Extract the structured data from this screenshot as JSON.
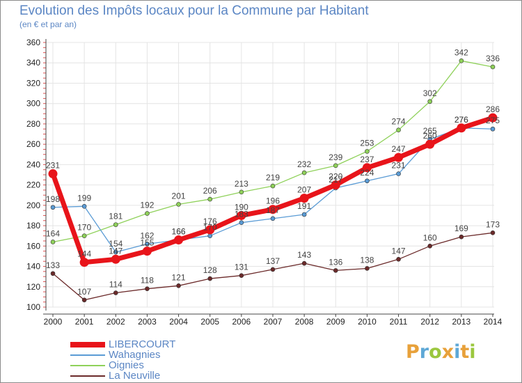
{
  "header": {
    "title": "Evolution des Impôts locaux pour la Commune par Habitant",
    "subtitle": "(en € et par an)"
  },
  "logo": {
    "letters": [
      "P",
      "r",
      "o",
      "x",
      "i",
      "t",
      "i"
    ],
    "colors": [
      "#e8a13a",
      "#5ea8d6",
      "#9bc73e",
      "#e8a13a",
      "#5ea8d6",
      "#e8a13a",
      "#9bc73e"
    ]
  },
  "chart_data": {
    "type": "line",
    "title": "Evolution des Impôts locaux pour la Commune par Habitant",
    "subtitle": "(en € et par an)",
    "xlabel": "",
    "ylabel": "",
    "ylim": [
      100,
      360
    ],
    "yticks": [
      100,
      120,
      140,
      160,
      180,
      200,
      220,
      240,
      260,
      280,
      300,
      320,
      340,
      360
    ],
    "x": [
      2000,
      2001,
      2002,
      2003,
      2004,
      2005,
      2006,
      2007,
      2008,
      2009,
      2010,
      2011,
      2012,
      2013,
      2014
    ],
    "grid": true,
    "legend_position": "bottom-left",
    "series": [
      {
        "name": "LIBERCOURT",
        "color": "#e8141a",
        "values": [
          231,
          144,
          147,
          155,
          166,
          176,
          190,
          196,
          207,
          220,
          237,
          247,
          260,
          276,
          286
        ]
      },
      {
        "name": "Wahagnies",
        "color": "#5a9bd5",
        "values": [
          198,
          199,
          154,
          162,
          166,
          170,
          183,
          187,
          191,
          217,
          224,
          231,
          265,
          276,
          275
        ]
      },
      {
        "name": "Oignies",
        "color": "#8fd15a",
        "values": [
          164,
          170,
          181,
          192,
          201,
          206,
          213,
          219,
          232,
          239,
          253,
          274,
          302,
          342,
          336
        ]
      },
      {
        "name": "La Neuville",
        "color": "#6b2a2a",
        "values": [
          133,
          107,
          114,
          118,
          121,
          128,
          131,
          137,
          143,
          136,
          138,
          147,
          160,
          169,
          173
        ]
      }
    ]
  }
}
